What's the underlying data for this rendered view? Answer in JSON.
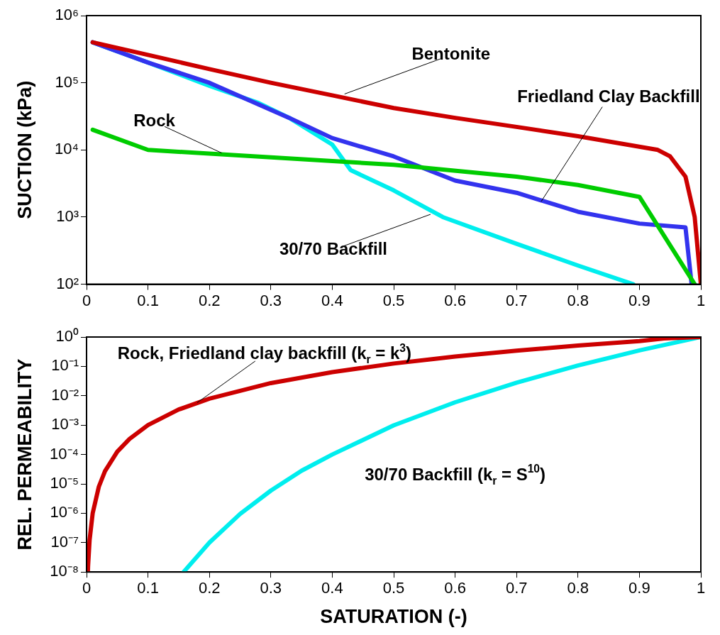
{
  "chart_data": [
    {
      "type": "line",
      "ylabel": "SUCTION (kPa)",
      "log": "y",
      "marker": "none",
      "grid": false,
      "legend": false,
      "xlim": [
        0,
        1
      ],
      "xticks": [
        0,
        0.1,
        0.2,
        0.3,
        0.4,
        0.5,
        0.6,
        0.7,
        0.8,
        0.9,
        1
      ],
      "ylim": [
        100,
        1000000
      ],
      "yticks": [
        {
          "value": 100,
          "label": "10²"
        },
        {
          "value": 1000,
          "label": "10³"
        },
        {
          "value": 10000,
          "label": "10⁴"
        },
        {
          "value": 100000,
          "label": "10⁵"
        },
        {
          "value": 1000000,
          "label": "10⁶"
        }
      ],
      "series": [
        {
          "color": "#cc0000",
          "x": [
            0.01,
            0.1,
            0.2,
            0.3,
            0.4,
            0.5,
            0.6,
            0.7,
            0.8,
            0.93,
            0.95,
            0.975,
            0.99,
            1.0
          ],
          "values": [
            400000,
            260000,
            160000,
            100000,
            65000,
            42000,
            30000,
            22000,
            16000,
            10000,
            8000,
            4000,
            1000,
            100
          ]
        },
        {
          "color": "#00cc00",
          "x": [
            0.01,
            0.1,
            0.5,
            0.7,
            0.8,
            0.9,
            0.99
          ],
          "values": [
            20000,
            10000,
            6000,
            4000,
            3000,
            2000,
            100
          ]
        },
        {
          "color": "#3333ee",
          "x": [
            0.01,
            0.1,
            0.2,
            0.33,
            0.4,
            0.5,
            0.6,
            0.7,
            0.8,
            0.9,
            0.975,
            0.985
          ],
          "values": [
            400000,
            200000,
            100000,
            30000,
            15000,
            8000,
            3500,
            2300,
            1200,
            800,
            700,
            100
          ]
        },
        {
          "color": "#00eeee",
          "x": [
            0.01,
            0.1,
            0.2,
            0.28,
            0.33,
            0.4,
            0.43,
            0.5,
            0.58,
            0.7,
            0.8,
            0.89
          ],
          "values": [
            400000,
            200000,
            90000,
            50000,
            30000,
            12000,
            5000,
            2500,
            1000,
            400,
            190,
            100
          ]
        }
      ],
      "annotations": [
        {
          "text": "Bentonite",
          "x": 0.42,
          "y": 68000
        },
        {
          "text": "Friedland Clay Backfill",
          "x": 0.74,
          "y": 1700
        },
        {
          "text": "Rock",
          "x": 0.22,
          "y": 9000
        },
        {
          "text": "30/70 Backfill",
          "x": 0.56,
          "y": 1100
        }
      ]
    },
    {
      "type": "line",
      "ylabel": "REL. PERMEABILITY",
      "xlabel": "SATURATION (-)",
      "log": "y",
      "marker": "none",
      "grid": false,
      "legend": false,
      "xlim": [
        0,
        1
      ],
      "xticks": [
        0,
        0.1,
        0.2,
        0.3,
        0.4,
        0.5,
        0.6,
        0.7,
        0.8,
        0.9,
        1
      ],
      "ylim": [
        1e-08,
        1
      ],
      "yticks": [
        {
          "value": 1e-08,
          "label": "10⁻⁸"
        },
        {
          "value": 1e-07,
          "label": "10⁻⁷"
        },
        {
          "value": 1e-06,
          "label": "10⁻⁶"
        },
        {
          "value": 1e-05,
          "label": "10⁻⁵"
        },
        {
          "value": 0.0001,
          "label": "10⁻⁴"
        },
        {
          "value": 0.001,
          "label": "10⁻³"
        },
        {
          "value": 0.01,
          "label": "10⁻²"
        },
        {
          "value": 0.1,
          "label": "10⁻¹"
        },
        {
          "value": 1,
          "label": "10⁰"
        }
      ],
      "series": [
        {
          "color": "#cc0000",
          "x": [
            0.0022,
            0.0025,
            0.005,
            0.01,
            0.02,
            0.03,
            0.05,
            0.07,
            0.1,
            0.15,
            0.2,
            0.3,
            0.4,
            0.5,
            0.6,
            0.7,
            0.8,
            0.9,
            0.94,
            1
          ],
          "values": [
            1e-08,
            1.6e-08,
            1.25e-07,
            1e-06,
            8e-06,
            2.7e-05,
            0.000125,
            0.00034,
            0.001,
            0.0034,
            0.008,
            0.027,
            0.064,
            0.125,
            0.216,
            0.343,
            0.512,
            0.729,
            0.9,
            1
          ]
        },
        {
          "color": "#00eeee",
          "x": [
            0.158,
            0.2,
            0.25,
            0.3,
            0.35,
            0.4,
            0.5,
            0.6,
            0.7,
            0.8,
            0.9,
            1
          ],
          "values": [
            1e-08,
            1e-07,
            9.5e-07,
            5.9e-06,
            2.8e-05,
            0.0001,
            0.00098,
            0.006,
            0.028,
            0.107,
            0.349,
            1
          ]
        }
      ],
      "annotations": [
        {
          "text": "Rock, Friedland clay backfill (k$_{r}$ = k$^{3}$)",
          "x": 0.18,
          "y": 0.0058
        },
        "30/70 Backfill (k$_{r}$ = S$^{10}$)"
      ]
    }
  ]
}
